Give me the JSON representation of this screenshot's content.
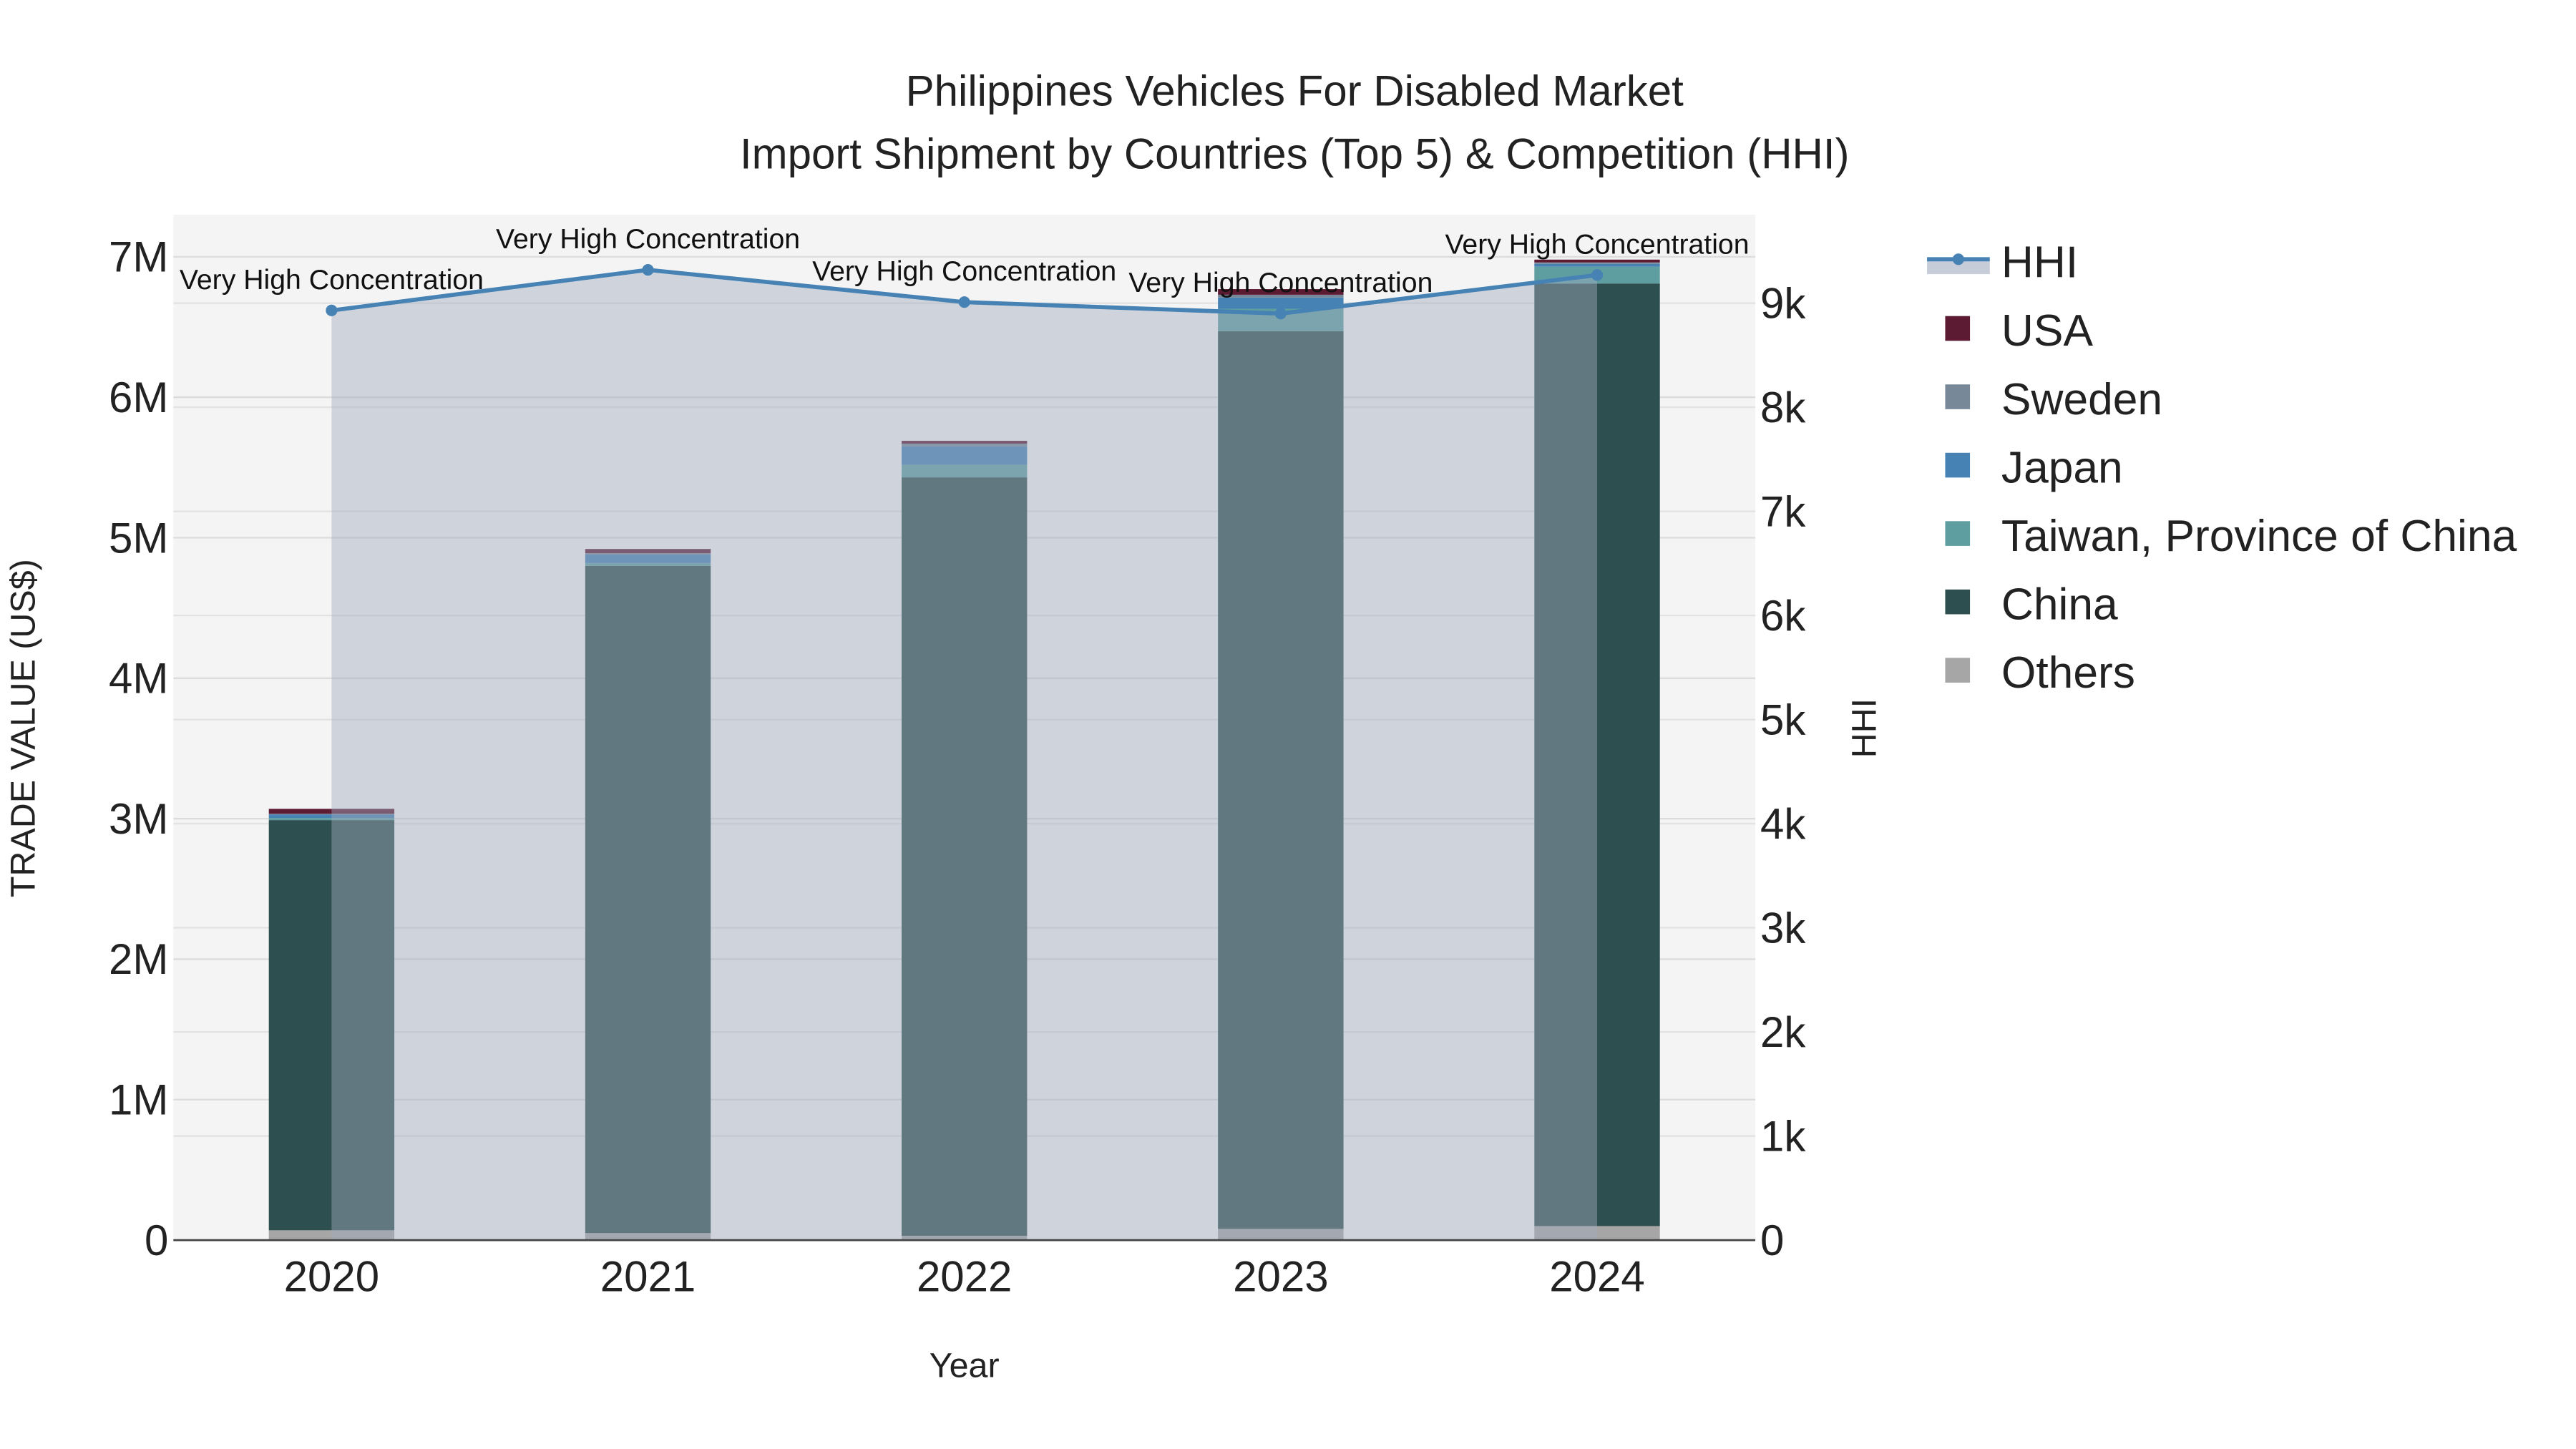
{
  "chart_data": {
    "type": "bar",
    "title": "Philippines Vehicles For Disabled Market",
    "subtitle": "Import Shipment by Countries (Top 5) & Competition (HHI)",
    "xlabel": "Year",
    "ylabel": "TRADE VALUE (US$)",
    "y2label": "HHI",
    "categories": [
      "2020",
      "2021",
      "2022",
      "2023",
      "2024"
    ],
    "ylim": [
      0,
      7300000
    ],
    "y2lim": [
      0,
      9850
    ],
    "yticks": [
      {
        "v": 0,
        "t": "0"
      },
      {
        "v": 1000000,
        "t": "1M"
      },
      {
        "v": 2000000,
        "t": "2M"
      },
      {
        "v": 3000000,
        "t": "3M"
      },
      {
        "v": 4000000,
        "t": "4M"
      },
      {
        "v": 5000000,
        "t": "5M"
      },
      {
        "v": 6000000,
        "t": "6M"
      },
      {
        "v": 7000000,
        "t": "7M"
      }
    ],
    "y2ticks": [
      {
        "v": 0,
        "t": "0"
      },
      {
        "v": 1000,
        "t": "1k"
      },
      {
        "v": 2000,
        "t": "2k"
      },
      {
        "v": 3000,
        "t": "3k"
      },
      {
        "v": 4000,
        "t": "4k"
      },
      {
        "v": 5000,
        "t": "5k"
      },
      {
        "v": 6000,
        "t": "6k"
      },
      {
        "v": 7000,
        "t": "7k"
      },
      {
        "v": 8000,
        "t": "8k"
      },
      {
        "v": 9000,
        "t": "9k"
      }
    ],
    "series": [
      {
        "name": "Others",
        "color": "#a6a6a6",
        "values": [
          70000,
          50000,
          30000,
          80000,
          100000
        ]
      },
      {
        "name": "China",
        "color": "#2e4f4f",
        "values": [
          2920000,
          4750000,
          5400000,
          6390000,
          6710000
        ]
      },
      {
        "name": "Taiwan, Province of China",
        "color": "#5f9ea0",
        "values": [
          15000,
          20000,
          90000,
          160000,
          120000
        ]
      },
      {
        "name": "Japan",
        "color": "#4682b4",
        "values": [
          25000,
          60000,
          130000,
          80000,
          20000
        ]
      },
      {
        "name": "Sweden",
        "color": "#778899",
        "values": [
          5000,
          10000,
          20000,
          20000,
          10000
        ]
      },
      {
        "name": "USA",
        "color": "#5c1a33",
        "values": [
          35000,
          30000,
          20000,
          40000,
          20000
        ]
      }
    ],
    "hhi": {
      "name": "HHI",
      "color": "#4682b4",
      "values": [
        8930,
        9320,
        9010,
        8900,
        9270
      ],
      "labels": [
        "Very High Concentration",
        "Very High Concentration",
        "Very High Concentration",
        "Very High Concentration",
        "Very High Concentration"
      ]
    },
    "legend_order": [
      "HHI",
      "USA",
      "Sweden",
      "Japan",
      "Taiwan, Province of China",
      "China",
      "Others"
    ],
    "legend_position": "top-right",
    "grid": true
  }
}
